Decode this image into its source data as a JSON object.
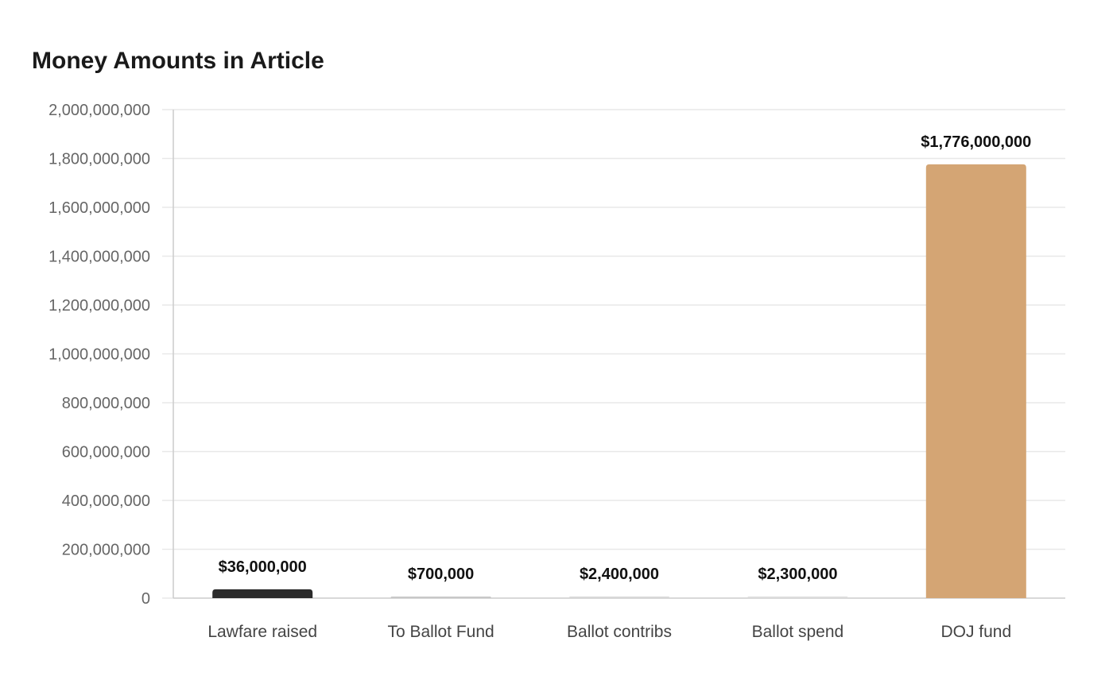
{
  "chart_data": {
    "type": "bar",
    "title": "Money Amounts in Article",
    "xlabel": "",
    "ylabel": "",
    "categories": [
      "Lawfare raised",
      "To Ballot Fund",
      "Ballot contribs",
      "Ballot spend",
      "DOJ fund"
    ],
    "values": [
      36000000,
      700000,
      2400000,
      2300000,
      1776000000
    ],
    "value_labels": [
      "$36,000,000",
      "$700,000",
      "$2,400,000",
      "$2,300,000",
      "$1,776,000,000"
    ],
    "bar_colors": [
      "#2b2b2b",
      "#c8c8c8",
      "#d8d8d8",
      "#dcdcdc",
      "#d4a574"
    ],
    "ylim": [
      0,
      2000000000
    ],
    "yticks": [
      0,
      200000000,
      400000000,
      600000000,
      800000000,
      1000000000,
      1200000000,
      1400000000,
      1600000000,
      1800000000,
      2000000000
    ],
    "ytick_labels": [
      "0",
      "200,000,000",
      "400,000,000",
      "600,000,000",
      "800,000,000",
      "1,000,000,000",
      "1,200,000,000",
      "1,400,000,000",
      "1,600,000,000",
      "1,800,000,000",
      "2,000,000,000"
    ],
    "grid": true,
    "legend": "none",
    "colors": {
      "gridline": "#e8e8e8",
      "axis": "#cccccc"
    }
  }
}
